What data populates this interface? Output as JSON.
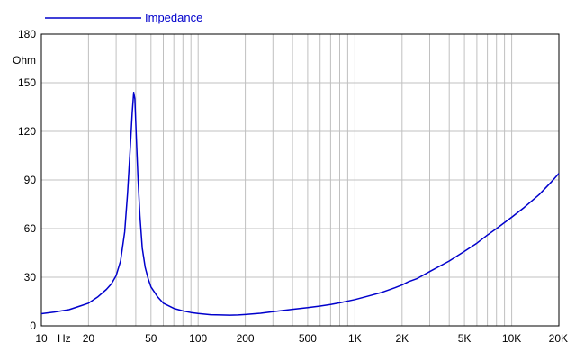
{
  "chart_data": {
    "type": "line",
    "title": "",
    "xlabel": "Hz",
    "ylabel": "Ohm",
    "x_scale": "log",
    "xlim": [
      10,
      20000
    ],
    "ylim": [
      0,
      180
    ],
    "grid": true,
    "legend_placement": "top-left",
    "x_ticks": [
      {
        "value": 10,
        "label": "10"
      },
      {
        "value": 20,
        "label": "20"
      },
      {
        "value": 50,
        "label": "50"
      },
      {
        "value": 100,
        "label": "100"
      },
      {
        "value": 200,
        "label": "200"
      },
      {
        "value": 500,
        "label": "500"
      },
      {
        "value": 1000,
        "label": "1K"
      },
      {
        "value": 2000,
        "label": "2K"
      },
      {
        "value": 5000,
        "label": "5K"
      },
      {
        "value": 10000,
        "label": "10K"
      },
      {
        "value": 20000,
        "label": "20K"
      }
    ],
    "y_ticks": [
      {
        "value": 0,
        "label": "0"
      },
      {
        "value": 30,
        "label": "30"
      },
      {
        "value": 60,
        "label": "60"
      },
      {
        "value": 90,
        "label": "90"
      },
      {
        "value": 120,
        "label": "120"
      },
      {
        "value": 150,
        "label": "150"
      },
      {
        "value": 180,
        "label": "180"
      }
    ],
    "series": [
      {
        "name": "Impedance",
        "color": "#0000cc",
        "x": [
          10,
          12,
          15,
          18,
          20,
          23,
          26,
          28,
          30,
          32,
          34,
          35.5,
          37,
          38,
          38.8,
          39.5,
          40.3,
          41.3,
          42.5,
          44,
          46,
          48,
          50,
          55,
          60,
          70,
          80,
          90,
          100,
          120,
          140,
          160,
          180,
          200,
          250,
          300,
          400,
          500,
          600,
          700,
          800,
          1000,
          1200,
          1500,
          1800,
          1900,
          2000,
          2200,
          2500,
          3000,
          4000,
          5000,
          6000,
          7000,
          8000,
          10000,
          12000,
          15000,
          18000,
          20000
        ],
        "y": [
          7.5,
          8.5,
          10,
          12.5,
          14,
          18,
          22.5,
          26,
          31,
          40,
          58,
          82,
          112,
          132,
          144,
          140,
          118,
          92,
          68,
          48,
          36,
          29,
          24,
          18,
          14,
          10.8,
          9.2,
          8.2,
          7.6,
          6.9,
          6.7,
          6.6,
          6.7,
          7,
          7.8,
          8.8,
          10.2,
          11.2,
          12.2,
          13.2,
          14.2,
          16.2,
          18.2,
          20.8,
          23.5,
          24.4,
          25.2,
          27.3,
          29.2,
          33.5,
          40,
          46,
          51,
          56,
          60,
          67,
          73,
          81,
          89,
          94
        ]
      }
    ]
  }
}
